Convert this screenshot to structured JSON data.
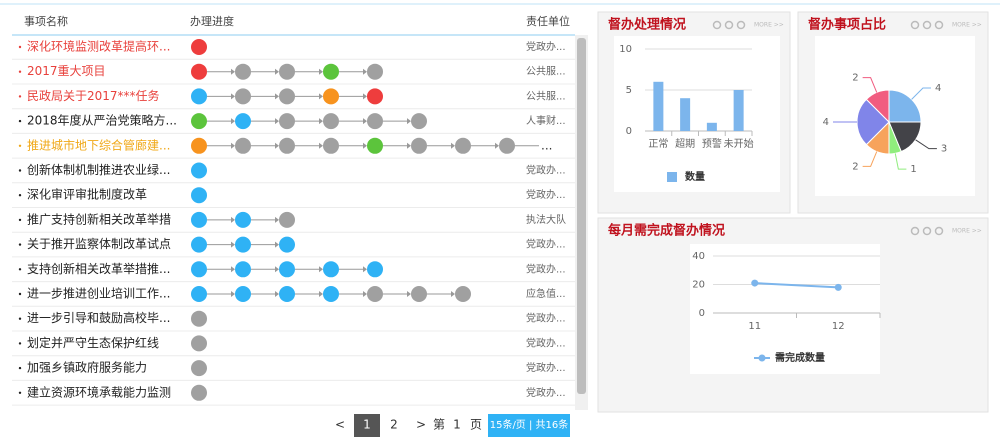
{
  "table": {
    "headers": [
      "事项名称",
      "办理进度",
      "责任单位"
    ],
    "rows": [
      {
        "name": "深化环境监测改革提高环...",
        "color": "#e8413c",
        "steps": [
          "#ee3d3d"
        ],
        "unit": "党政办..."
      },
      {
        "name": "2017重大项目",
        "color": "#e8413c",
        "steps": [
          "#ee3d3d",
          "#a0a0a0",
          "#a0a0a0",
          "#5cc43c",
          "#a0a0a0"
        ],
        "unit": "公共服..."
      },
      {
        "name": "民政局关于2017***任务",
        "color": "#e8413c",
        "steps": [
          "#2fb2f5",
          "#a0a0a0",
          "#a0a0a0",
          "#f7931e",
          "#ee3d3d"
        ],
        "unit": "公共服..."
      },
      {
        "name": "2018年度从严治党策略方...",
        "color": "#222222",
        "steps": [
          "#5cc43c",
          "#2fb2f5",
          "#a0a0a0",
          "#a0a0a0",
          "#a0a0a0",
          "#a0a0a0"
        ],
        "unit": "人事财..."
      },
      {
        "name": "推进城市地下综合管廊建...",
        "color": "#f0a818",
        "steps": [
          "#f7931e",
          "#a0a0a0",
          "#a0a0a0",
          "#a0a0a0",
          "#5cc43c",
          "#a0a0a0",
          "#a0a0a0",
          "#a0a0a0"
        ],
        "more": "..."
      },
      {
        "name": "创新体制机制推进农业绿...",
        "color": "#222222",
        "steps": [
          "#2fb2f5"
        ],
        "unit": "党政办..."
      },
      {
        "name": "深化审评审批制度改革",
        "color": "#222222",
        "steps": [
          "#2fb2f5"
        ],
        "unit": "党政办..."
      },
      {
        "name": "推广支持创新相关改革举措",
        "color": "#222222",
        "steps": [
          "#2fb2f5",
          "#2fb2f5",
          "#a0a0a0"
        ],
        "unit": "执法大队"
      },
      {
        "name": "关于推开监察体制改革试点",
        "color": "#222222",
        "steps": [
          "#2fb2f5",
          "#2fb2f5",
          "#2fb2f5"
        ],
        "unit": "党政办..."
      },
      {
        "name": "支持创新相关改革举措推...",
        "color": "#222222",
        "steps": [
          "#2fb2f5",
          "#2fb2f5",
          "#2fb2f5",
          "#2fb2f5",
          "#2fb2f5"
        ],
        "unit": "党政办..."
      },
      {
        "name": "进一步推进创业培训工作...",
        "color": "#222222",
        "steps": [
          "#2fb2f5",
          "#2fb2f5",
          "#2fb2f5",
          "#2fb2f5",
          "#a0a0a0",
          "#a0a0a0",
          "#a0a0a0"
        ],
        "unit": "应急值..."
      },
      {
        "name": "进一步引导和鼓励高校毕...",
        "color": "#222222",
        "steps": [
          "#a0a0a0"
        ],
        "unit": "党政办..."
      },
      {
        "name": "划定并严守生态保护红线",
        "color": "#222222",
        "steps": [
          "#a0a0a0"
        ],
        "unit": "党政办..."
      },
      {
        "name": "加强乡镇政府服务能力",
        "color": "#222222",
        "steps": [
          "#a0a0a0"
        ],
        "unit": "党政办..."
      },
      {
        "name": "建立资源环境承载能力监测",
        "color": "#222222",
        "steps": [
          "#a0a0a0"
        ],
        "unit": "党政办..."
      }
    ]
  },
  "pagination": {
    "prev": "<",
    "pages": [
      "1",
      "2"
    ],
    "next": ">",
    "goto": [
      "第",
      "1",
      "页"
    ],
    "summary": "15条/页 | 共16条"
  },
  "panels": [
    {
      "title": "督办处理情况",
      "more": "MORE >>",
      "chart_data": {
        "type": "bar",
        "categories": [
          "正常",
          "超期",
          "预警",
          "未开始"
        ],
        "series": [
          {
            "name": "数量",
            "color": "#7cb5ec",
            "values": [
              6,
              4,
              1,
              5
            ]
          }
        ],
        "ylim": [
          0,
          10
        ],
        "yticks": [
          0,
          5,
          10
        ],
        "grid": true
      }
    },
    {
      "title": "督办事项占比",
      "more": "MORE >>",
      "chart_data": {
        "type": "pie",
        "values": [
          4,
          3,
          1,
          2,
          4,
          2
        ],
        "colors": [
          "#7cb5ec",
          "#434348",
          "#90ed7d",
          "#f7a35c",
          "#8085e9",
          "#f15c80"
        ]
      }
    },
    {
      "title": "每月需完成督办情况",
      "more": "MORE >>",
      "chart_data": {
        "type": "line",
        "categories": [
          "11",
          "12"
        ],
        "series": [
          {
            "name": "需完成数量",
            "color": "#7cb5ec",
            "values": [
              21,
              18
            ]
          }
        ],
        "ylim": [
          0,
          40
        ],
        "yticks": [
          0,
          20,
          40
        ],
        "grid": true
      }
    }
  ]
}
